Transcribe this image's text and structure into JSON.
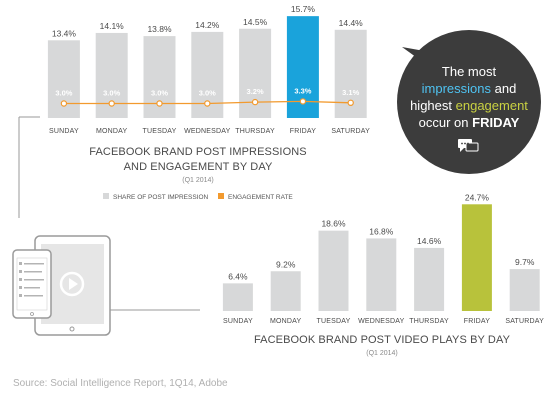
{
  "colors": {
    "bar": "#d7d8d9",
    "highlight_blue": "#1aa3db",
    "highlight_green": "#b8c23b",
    "engagement": "#f29a2e",
    "bubble": "#3c3c3c",
    "impressions_word": "#4fc3f2",
    "engagement_word": "#c9d142"
  },
  "chart_data": [
    {
      "type": "bar",
      "title_line1": "FACEBOOK BRAND POST IMPRESSIONS",
      "title_line2": "AND ENGAGEMENT BY DAY",
      "subtitle": "(Q1 2014)",
      "categories": [
        "SUNDAY",
        "MONDAY",
        "TUESDAY",
        "WEDNESDAY",
        "THURSDAY",
        "FRIDAY",
        "SATURDAY"
      ],
      "series": [
        {
          "name": "SHARE OF POST IMPRESSION",
          "values": [
            13.4,
            14.1,
            13.8,
            14.2,
            14.5,
            15.7,
            14.4
          ],
          "labels": [
            "13.4%",
            "14.1%",
            "13.8%",
            "14.2%",
            "14.5%",
            "15.7%",
            "14.4%"
          ]
        },
        {
          "name": "ENGAGEMENT RATE",
          "values": [
            3.0,
            3.0,
            3.0,
            3.0,
            3.2,
            3.3,
            3.1
          ],
          "labels": [
            "3.0%",
            "3.0%",
            "3.0%",
            "3.0%",
            "3.2%",
            "3.3%",
            "3.1%"
          ]
        }
      ],
      "highlight_category": "FRIDAY",
      "legend_position": "bottom"
    },
    {
      "type": "bar",
      "title": "FACEBOOK BRAND POST VIDEO PLAYS BY DAY",
      "subtitle": "(Q1 2014)",
      "categories": [
        "SUNDAY",
        "MONDAY",
        "TUESDAY",
        "WEDNESDAY",
        "THURSDAY",
        "FRIDAY",
        "SATURDAY"
      ],
      "values": [
        6.4,
        9.2,
        18.6,
        16.8,
        14.6,
        24.7,
        9.7
      ],
      "labels": [
        "6.4%",
        "9.2%",
        "18.6%",
        "16.8%",
        "14.6%",
        "24.7%",
        "9.7%"
      ],
      "highlight_category": "FRIDAY"
    }
  ],
  "callout": {
    "line1": "The most",
    "line2_word": "impressions",
    "line2_rest": " and",
    "line3_pre": "highest ",
    "line3_word": "engagement",
    "line4_pre": "occur on ",
    "line4_word": "FRIDAY",
    "icon": "chat-bubbles-icon"
  },
  "source": "Source: Social Intelligence Report, 1Q14, Adobe",
  "illustration": {
    "icon": "devices-video-icon"
  }
}
